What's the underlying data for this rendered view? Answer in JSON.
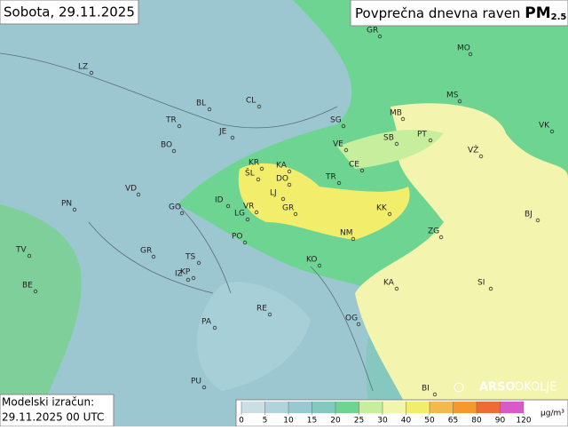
{
  "date_label": "Sobota, 29.11.2025",
  "title": {
    "text": "Povprečna dnevna raven",
    "pollutant": "PM",
    "pollutant_sub": "2.5"
  },
  "model": {
    "line1": "Modelski izračun:",
    "line2": "29.11.2025 00 UTC"
  },
  "logo": {
    "brand": "ARSO",
    "section": "OKOLJE"
  },
  "cities": [
    "LZ",
    "GR",
    "MO",
    "MS",
    "BL",
    "CL",
    "TR",
    "MB",
    "SG",
    "VK",
    "BO",
    "JE",
    "SB",
    "PT",
    "VE",
    "VŽ",
    "KR",
    "KA",
    "CE",
    "DO",
    "VD",
    "ŠL",
    "TR",
    "LJ",
    "ID",
    "PN",
    "GO",
    "VR",
    "GR",
    "KK",
    "LG",
    "BJ",
    "ZG",
    "NM",
    "PO",
    "GR",
    "TV",
    "TS",
    "KO",
    "KP",
    "IZ",
    "BE",
    "KA",
    "SI",
    "RE",
    "PA",
    "OG",
    "PU",
    "BI"
  ],
  "legend": {
    "ticks": [
      0,
      5,
      10,
      15,
      20,
      25,
      30,
      40,
      50,
      65,
      80,
      90,
      120
    ],
    "colors": [
      "#c9dfe4",
      "#b1d4dc",
      "#98c9d2",
      "#86c7bf",
      "#6ed491",
      "#c6ee9c",
      "#f3f4ad",
      "#f2ee6c",
      "#f4b94c",
      "#f49a2c",
      "#ee6a36",
      "#d85ac8"
    ],
    "unit": "µg/m³"
  }
}
